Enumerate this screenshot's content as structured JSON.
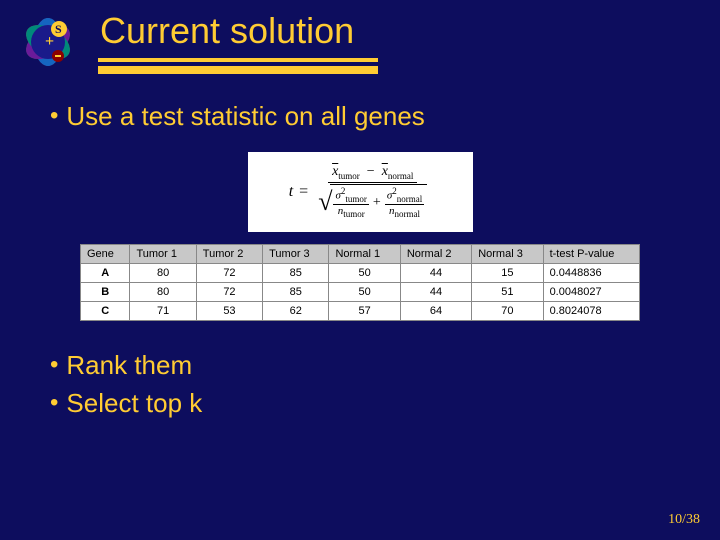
{
  "title": "Current solution",
  "bullets": {
    "b1": "Use a test statistic on all genes",
    "b2": "Rank them",
    "b3": "Select top k"
  },
  "formula": {
    "lhs": "t",
    "num_left_var": "x",
    "num_left_sub": "tumor",
    "num_right_var": "x",
    "num_right_sub": "normal",
    "den_a_top_var": "σ",
    "den_a_top_sup": "2",
    "den_a_top_sub": "tumor",
    "den_a_bot_var": "n",
    "den_a_bot_sub": "tumor",
    "den_b_top_var": "σ",
    "den_b_top_sup": "2",
    "den_b_top_sub": "normal",
    "den_b_bot_var": "n",
    "den_b_bot_sub": "normal"
  },
  "table": {
    "headers": [
      "Gene",
      "Tumor 1",
      "Tumor 2",
      "Tumor 3",
      "Normal 1",
      "Normal 2",
      "Normal 3",
      "t-test P-value"
    ],
    "rows": [
      [
        "A",
        "80",
        "72",
        "85",
        "50",
        "44",
        "15",
        "0.0448836"
      ],
      [
        "B",
        "80",
        "72",
        "85",
        "50",
        "44",
        "51",
        "0.0048027"
      ],
      [
        "C",
        "71",
        "53",
        "62",
        "57",
        "64",
        "70",
        "0.8024078"
      ]
    ]
  },
  "page": "10/38",
  "colors": {
    "background": "#0d0d5e",
    "accent": "#ffcc33",
    "table_header_bg": "#c8c8c8",
    "table_cell_bg": "#ffffff",
    "table_border": "#888888"
  },
  "logo": {
    "petal_colors": [
      "#5b3a9b",
      "#2e7d32",
      "#c62828",
      "#1565c0",
      "#6a1b9a",
      "#00897b"
    ],
    "center_bg": "#1a1a8a",
    "plus_color": "#ffcc33",
    "s_badge_bg": "#ffcc33",
    "s_color": "#0d0d5e",
    "minus_badge": "#8b0000"
  }
}
